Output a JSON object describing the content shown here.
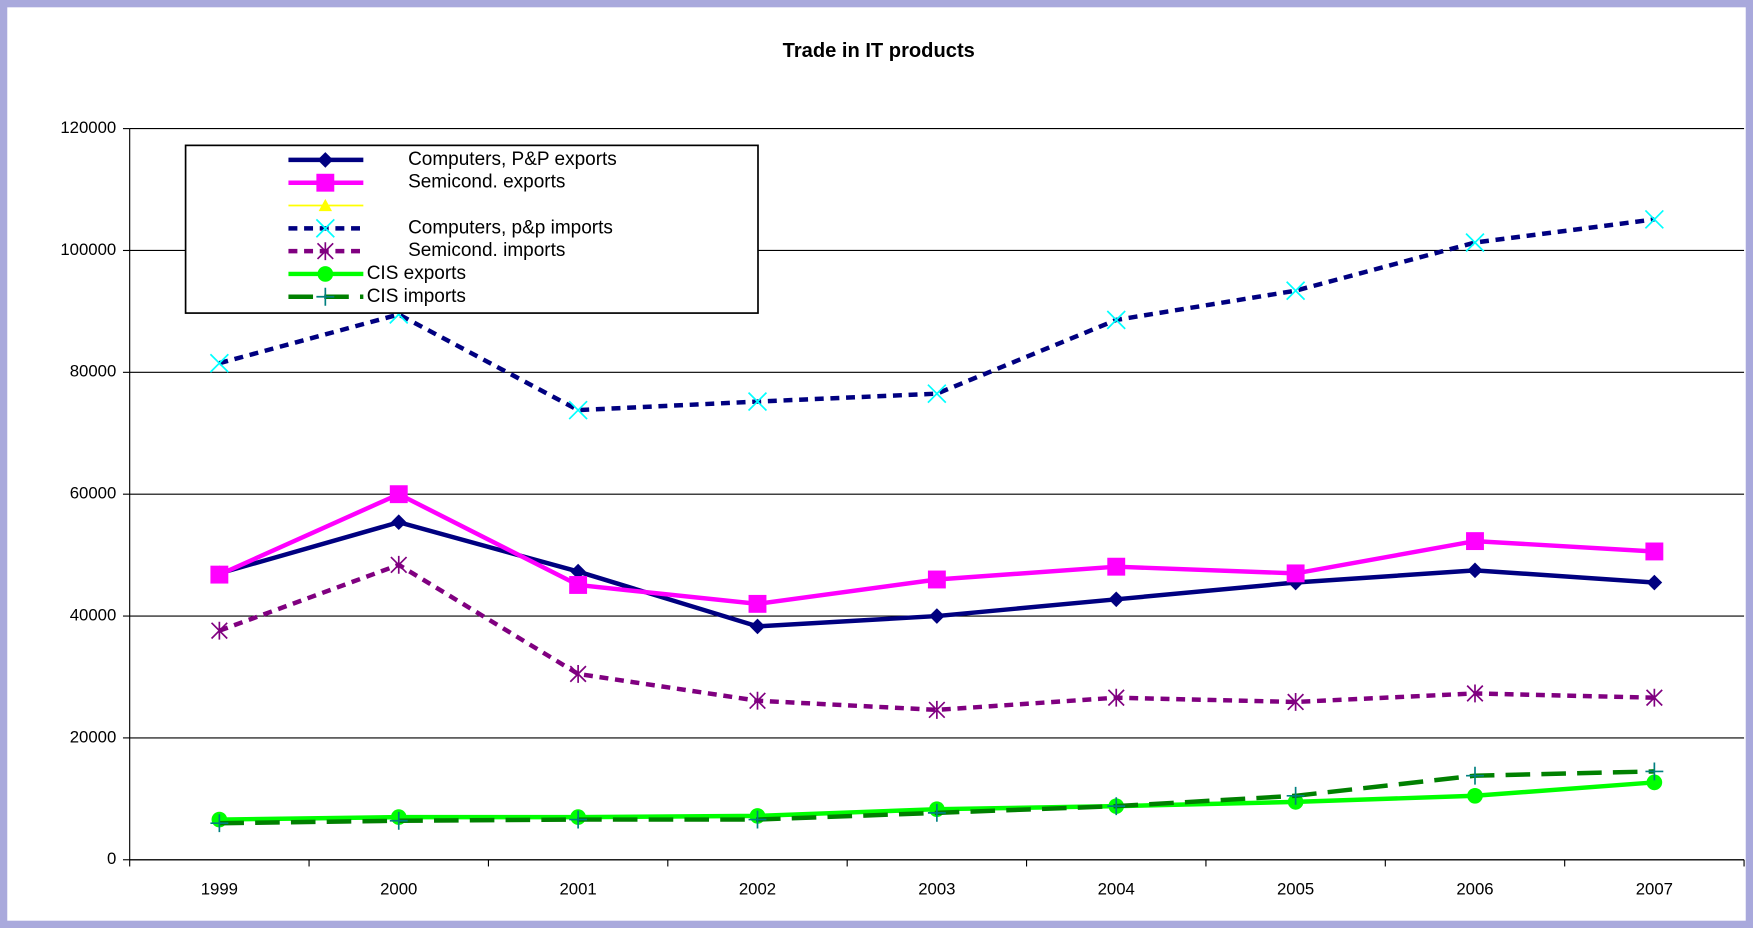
{
  "chart_data": {
    "type": "line",
    "title": "Trade in IT products",
    "categories": [
      "1999",
      "2000",
      "2001",
      "2002",
      "2003",
      "2004",
      "2005",
      "2006",
      "2007"
    ],
    "ylim": [
      0,
      120000
    ],
    "yticks": [
      0,
      20000,
      40000,
      60000,
      80000,
      100000,
      120000
    ],
    "grid": true,
    "legend": "upper left",
    "series": [
      {
        "name": "Computers, P&P exports",
        "color": "#000080",
        "marker": "diamond",
        "dash": "solid",
        "values": [
          47000,
          55400,
          47300,
          38300,
          40000,
          42750,
          45500,
          47500,
          45500
        ]
      },
      {
        "name": "Semicond. exports",
        "color": "#ff00ff",
        "marker": "square",
        "dash": "solid",
        "values": [
          46800,
          60000,
          45100,
          42000,
          46000,
          48100,
          47000,
          52300,
          50600
        ]
      },
      {
        "color": "#ffff00",
        "marker": "triangle",
        "dash": "solid",
        "values": [
          null,
          null,
          null,
          null,
          null,
          null,
          null,
          null,
          null
        ]
      },
      {
        "name": "Computers, p&p imports",
        "color": "#000080",
        "markerColor": "#00ffff",
        "marker": "x",
        "dash": "dotted",
        "values": [
          81500,
          89500,
          73800,
          75200,
          76500,
          88600,
          93400,
          101300,
          105100
        ]
      },
      {
        "name": "Semicond. imports",
        "color": "#800080",
        "marker": "star",
        "dash": "dotted",
        "values": [
          37600,
          48400,
          30500,
          26100,
          24600,
          26600,
          25900,
          27300,
          26600
        ]
      },
      {
        "name": "CIS exports",
        "color": "#00ff00",
        "marker": "circle",
        "dash": "solid",
        "values": [
          6600,
          7000,
          7000,
          7200,
          8300,
          8800,
          9500,
          10500,
          12700
        ]
      },
      {
        "name": "CIS imports",
        "color": "#008000",
        "markerColor": "#008080",
        "marker": "plus",
        "dash": "dashed",
        "values": [
          6000,
          6400,
          6600,
          6600,
          7700,
          8800,
          10500,
          13800,
          14500
        ]
      }
    ]
  }
}
